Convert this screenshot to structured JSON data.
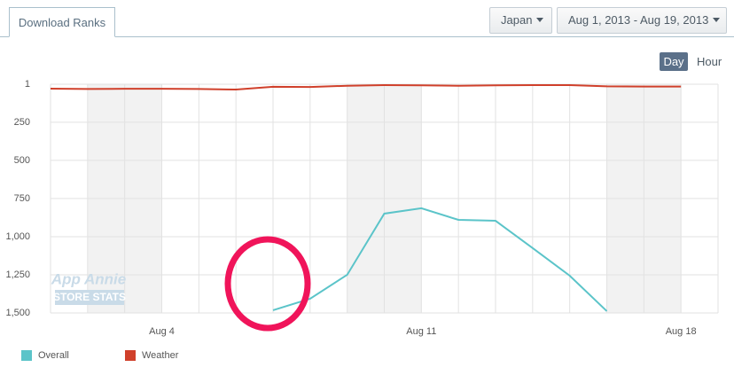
{
  "ui": {
    "tab": "Download Ranks",
    "country": "Japan",
    "date_range": "Aug 1, 2013 - Aug 19, 2013",
    "granularity": [
      "Day",
      "Hour"
    ],
    "watermark": [
      "App Annie",
      "STORE STATS"
    ]
  },
  "chart_data": {
    "type": "line",
    "categories": [
      null,
      null,
      null,
      "Aug 4",
      null,
      null,
      null,
      null,
      null,
      null,
      "Aug 11",
      null,
      null,
      null,
      null,
      null,
      null,
      "Aug 18",
      null
    ],
    "series": [
      {
        "name": "Overall",
        "color": "#5bc4c9",
        "values": [
          null,
          null,
          null,
          null,
          null,
          null,
          1482,
          1407,
          1250,
          849,
          814,
          890,
          896,
          1075,
          1256,
          1488,
          null,
          null,
          null
        ]
      },
      {
        "name": "Weather",
        "color": "#d0402b",
        "values": [
          30,
          32,
          31,
          31,
          32,
          36,
          18,
          19,
          11,
          7,
          8,
          11,
          8,
          7,
          7,
          15,
          16,
          16,
          null
        ]
      }
    ],
    "ylim": [
      1500,
      1
    ],
    "yticks": [
      1,
      250,
      500,
      750,
      {
        "value": 1000,
        "label": "1,000"
      },
      {
        "value": 1250,
        "label": "1,250"
      },
      {
        "value": 1500,
        "label": "1,500"
      }
    ],
    "grid": true
  }
}
